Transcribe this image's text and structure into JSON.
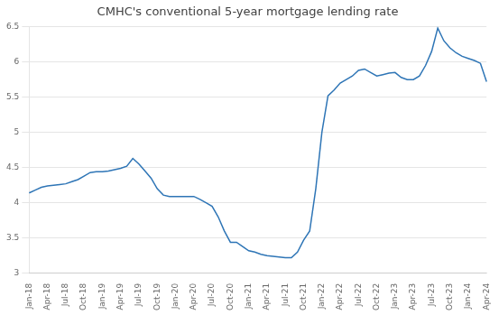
{
  "chart_data": {
    "type": "line",
    "title": "CMHC's conventional 5-year mortgage lending rate",
    "categories": [
      "Jan-18",
      null,
      null,
      "Apr-18",
      null,
      null,
      "Jul-18",
      null,
      null,
      "Oct-18",
      null,
      null,
      "Jan-19",
      null,
      null,
      "Apr-19",
      null,
      null,
      "Jul-19",
      null,
      null,
      "Oct-19",
      null,
      null,
      "Jan-20",
      null,
      null,
      "Apr-20",
      null,
      null,
      "Jul-20",
      null,
      null,
      "Oct-20",
      null,
      null,
      "Jan-21",
      null,
      null,
      "Apr-21",
      null,
      null,
      "Jul-21",
      null,
      null,
      "Oct-21",
      null,
      null,
      "Jan-22",
      null,
      null,
      "Apr-22",
      null,
      null,
      "Jul-22",
      null,
      null,
      "Oct-22",
      null,
      null,
      "Jan-23",
      null,
      null,
      "Apr-23",
      null,
      null,
      "Jul-23",
      null,
      null,
      "Oct-23",
      null,
      null,
      "Jan-24",
      null,
      null,
      "Apr-24"
    ],
    "values": [
      4.14,
      4.18,
      4.22,
      4.24,
      4.25,
      4.26,
      4.27,
      4.3,
      4.33,
      4.38,
      4.43,
      4.44,
      4.44,
      4.45,
      4.47,
      4.49,
      4.52,
      4.63,
      4.55,
      4.45,
      4.35,
      4.2,
      4.11,
      4.09,
      4.09,
      4.09,
      4.09,
      4.09,
      4.05,
      4.0,
      3.95,
      3.8,
      3.6,
      3.44,
      3.44,
      3.38,
      3.32,
      3.3,
      3.27,
      3.25,
      3.24,
      3.23,
      3.22,
      3.22,
      3.3,
      3.47,
      3.6,
      4.2,
      5.0,
      5.52,
      5.6,
      5.7,
      5.75,
      5.8,
      5.88,
      5.9,
      5.85,
      5.8,
      5.82,
      5.84,
      5.85,
      5.78,
      5.75,
      5.75,
      5.8,
      5.95,
      6.15,
      6.48,
      6.3,
      6.2,
      6.13,
      6.08,
      6.05,
      6.02,
      5.98,
      5.72
    ],
    "color": "#2E75B6",
    "ylim": [
      3,
      6.5
    ],
    "yticks": [
      3,
      3.5,
      4,
      4.5,
      5,
      5.5,
      6,
      6.5
    ],
    "grid": true
  }
}
